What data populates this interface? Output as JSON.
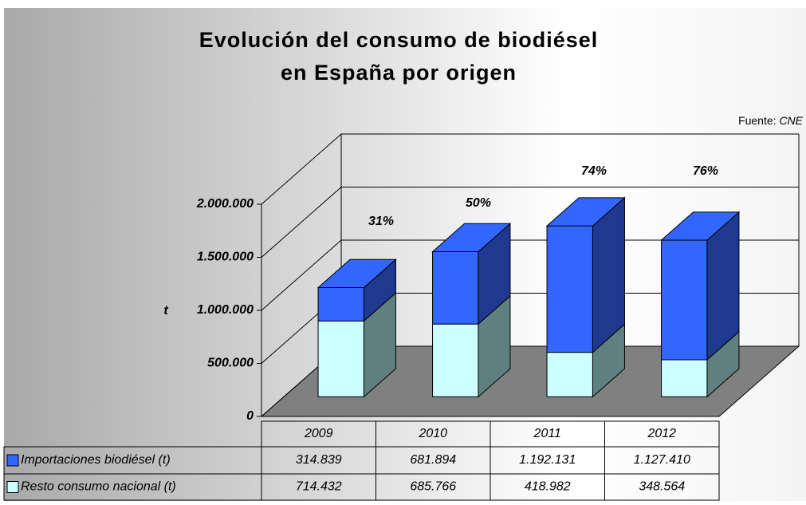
{
  "chart_data": {
    "type": "bar",
    "stacked": true,
    "three_d": true,
    "title": [
      "Evolución del consumo de biodiésel",
      "en España por origen"
    ],
    "source_label": "Fuente:",
    "source": "CNE",
    "ylabel": "t",
    "categories": [
      "2009",
      "2010",
      "2011",
      "2012"
    ],
    "series": [
      {
        "name": "Resto consumo nacional (t)",
        "color": "#ccffff",
        "side_color": "#608080",
        "values": [
          714432,
          685766,
          418982,
          348564
        ],
        "value_labels": [
          "714.432",
          "685.766",
          "418.982",
          "348.564"
        ]
      },
      {
        "name": "Importaciones biodiésel (t)",
        "color": "#3366ff",
        "side_color": "#1f3890",
        "values": [
          314839,
          681894,
          1192131,
          1127410
        ],
        "value_labels": [
          "314.839",
          "681.894",
          "1.192.131",
          "1.127.410"
        ]
      }
    ],
    "annotations": [
      "31%",
      "50%",
      "74%",
      "76%"
    ],
    "ylim": [
      0,
      2000000
    ],
    "yticks": [
      0,
      {
        "value": 500000,
        "label": "500.000"
      },
      {
        "value": 1000000,
        "label": "1.000.000"
      },
      {
        "value": 1500000,
        "label": "1.500.000"
      },
      {
        "value": 2000000,
        "label": "2.000.000"
      }
    ],
    "grid": true,
    "floor_color": "#808080"
  }
}
